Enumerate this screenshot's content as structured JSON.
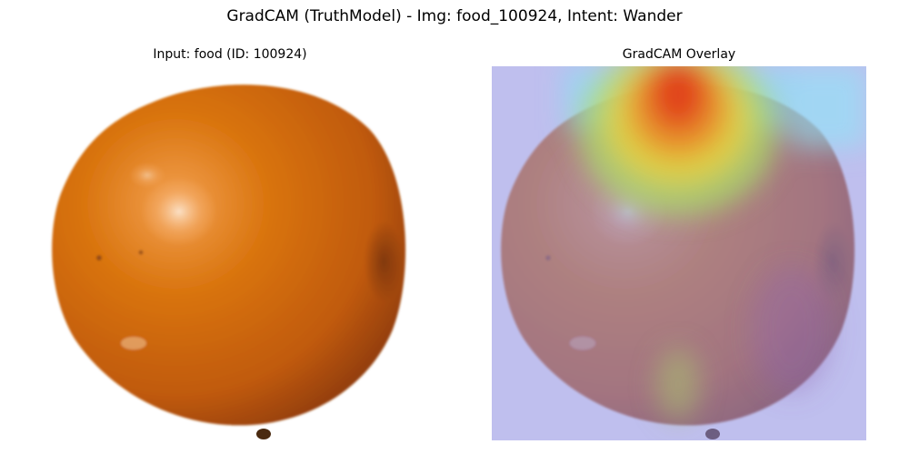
{
  "figure": {
    "title": "GradCAM (TruthModel) - Img: food_100924, Intent: Wander"
  },
  "panels": [
    {
      "title": "Input: food (ID: 100924)",
      "image_subject": "orange fruit on white background"
    },
    {
      "title": "GradCAM Overlay",
      "image_subject": "same fruit with gradcam heatmap overlay"
    }
  ],
  "colors": {
    "fruit_base": "#c8630a",
    "fruit_shadow": "#8d3a0a",
    "fruit_highlight": "#f6b070",
    "overlay_cold": "#9e9ee6",
    "heat_red": "#e0401a",
    "heat_yellow": "#e8d040",
    "heat_green": "#a8dc6a",
    "heat_cyan": "#8ee6f6"
  }
}
